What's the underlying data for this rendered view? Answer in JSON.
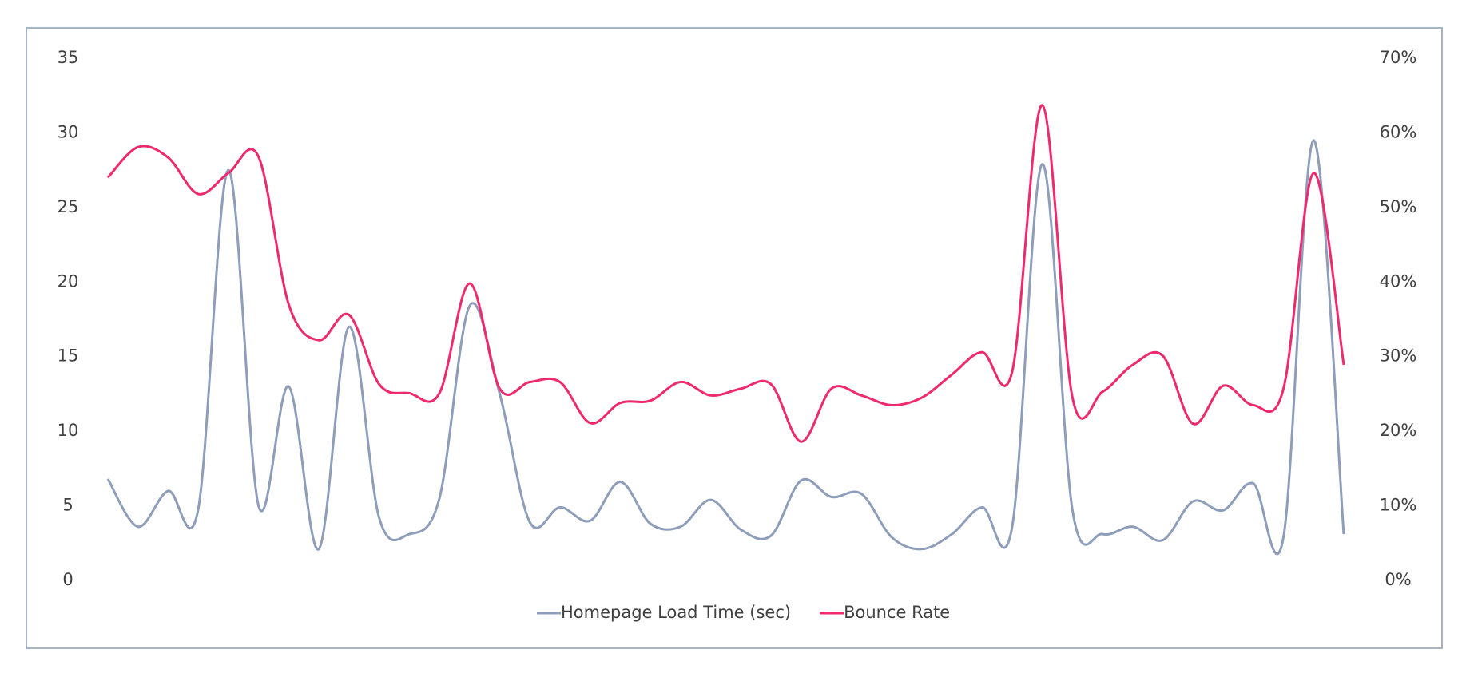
{
  "chart_data": {
    "type": "line",
    "series": [
      {
        "name": "Homepage Load Time (sec)",
        "color": "#8e9dba",
        "axis": "y",
        "values": [
          6.8,
          3.6,
          6.0,
          4.8,
          27.5,
          5.0,
          13.0,
          2.1,
          17.0,
          4.2,
          3.1,
          5.5,
          18.4,
          12.5,
          3.9,
          4.9,
          4.0,
          6.6,
          3.8,
          3.6,
          5.4,
          3.4,
          3.0,
          6.7,
          5.6,
          5.8,
          2.9,
          2.1,
          3.1,
          4.9,
          3.6,
          27.9,
          4.7,
          3.1,
          3.6,
          2.7,
          5.3,
          4.7,
          6.5,
          2.9,
          29.5,
          3.1
        ]
      },
      {
        "name": "Bounce Rate",
        "color": "#f0286e",
        "axis": "y2",
        "values": [
          54,
          58.1,
          56.7,
          51.8,
          54.6,
          56.8,
          37,
          32.2,
          35.6,
          26.3,
          25.1,
          25.1,
          39.8,
          25.7,
          26.6,
          26.6,
          21.1,
          23.8,
          24.1,
          26.6,
          24.8,
          25.7,
          26.3,
          18.6,
          25.7,
          24.8,
          23.5,
          24.5,
          27.6,
          30.6,
          28,
          63.7,
          24.5,
          25.3,
          28.9,
          30.1,
          21,
          26.1,
          23.5,
          25.7,
          54.6,
          28.9
        ]
      }
    ],
    "ylim": [
      0,
      35
    ],
    "yticks": [
      0,
      5,
      10,
      15,
      20,
      25,
      30,
      35
    ],
    "y2lim": [
      0,
      70
    ],
    "y2ticks": [
      {
        "value": 0,
        "label": "0%"
      },
      {
        "value": 10,
        "label": "10%"
      },
      {
        "value": 20,
        "label": "20%"
      },
      {
        "value": 30,
        "label": "30%"
      },
      {
        "value": 40,
        "label": "40%"
      },
      {
        "value": 50,
        "label": "50%"
      },
      {
        "value": 60,
        "label": "60%"
      },
      {
        "value": 70,
        "label": "70%"
      }
    ],
    "grid": false,
    "legend": "bottom"
  }
}
